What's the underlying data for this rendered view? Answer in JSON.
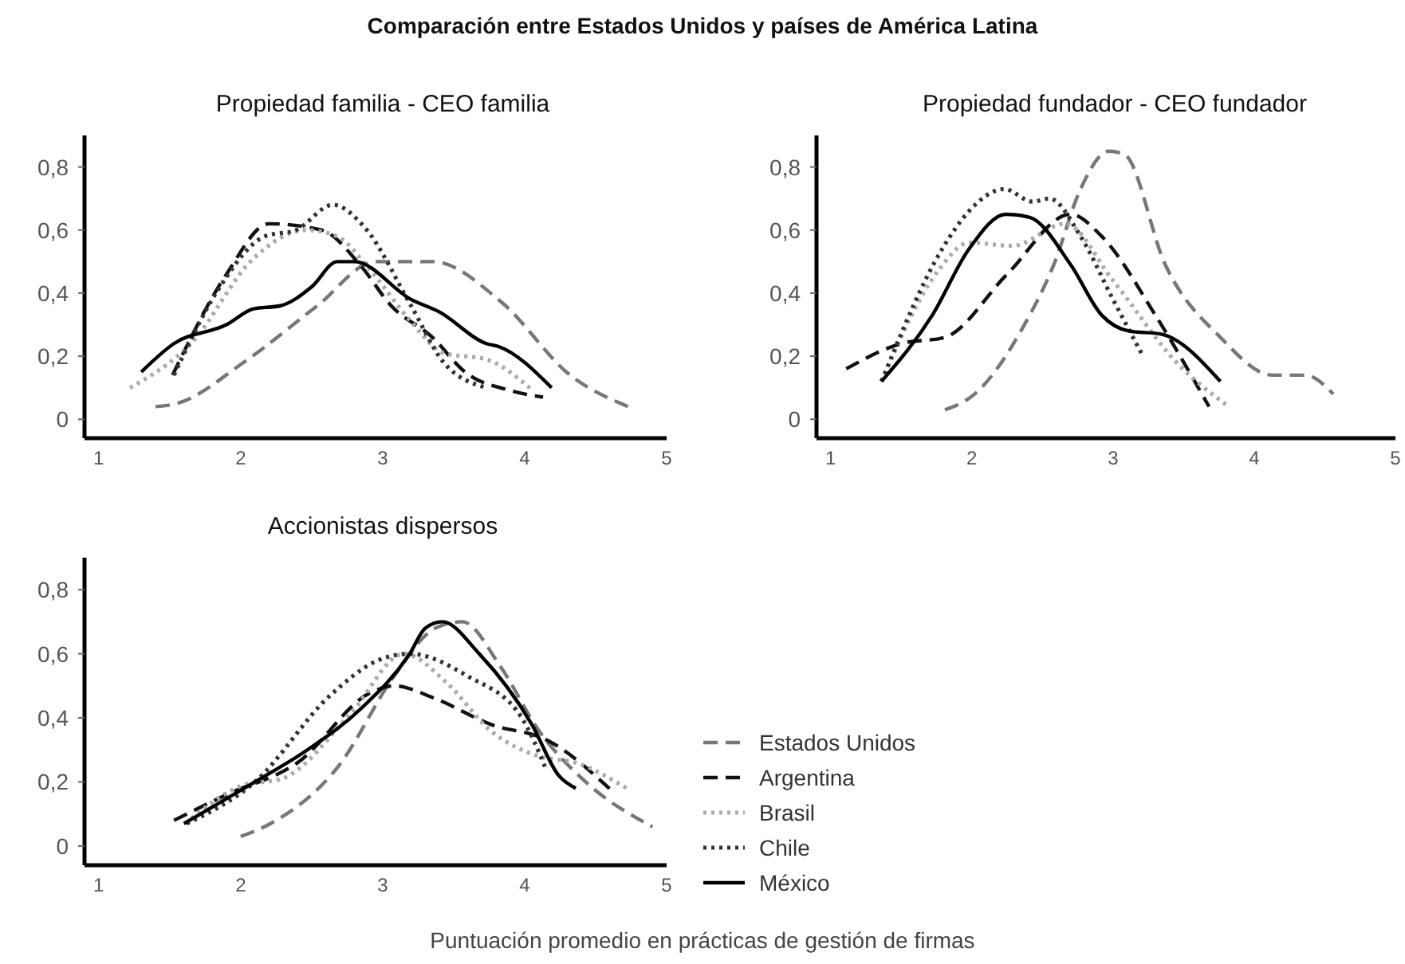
{
  "chart_data": [
    {
      "type": "line",
      "title": "Propiedad familia - CEO familia",
      "annotations": [
        "Comparación entre Estados Unidos y países de América Latina"
      ],
      "xlim": [
        0.9,
        5
      ],
      "xticks": [
        1,
        2,
        3,
        4,
        5
      ],
      "ylim": [
        -0.06,
        0.9
      ],
      "yticks": [
        {
          "value": 0,
          "label": "0"
        },
        {
          "value": 0.2,
          "label": "0,2"
        },
        {
          "value": 0.4,
          "label": "0,4"
        },
        {
          "value": 0.6,
          "label": "0,6"
        },
        {
          "value": 0.8,
          "label": "0,8"
        }
      ],
      "grid": false,
      "legend": false,
      "marker": "none",
      "series": [
        {
          "color": "#777777",
          "line_style": "dashed",
          "x": [
            1.4,
            1.55,
            2.02,
            2.54,
            2.95,
            3.35,
            3.84,
            4.32,
            4.73
          ],
          "values": [
            0.04,
            0.05,
            0.18,
            0.36,
            0.5,
            0.5,
            0.37,
            0.14,
            0.04
          ]
        },
        {
          "color": "#111111",
          "line_style": "dashed",
          "x": [
            1.52,
            1.9,
            2.2,
            2.57,
            2.84,
            3.06,
            3.35,
            3.58,
            3.91,
            4.13
          ],
          "values": [
            0.14,
            0.46,
            0.62,
            0.6,
            0.49,
            0.36,
            0.26,
            0.15,
            0.09,
            0.07
          ]
        },
        {
          "color": "#aaaaaa",
          "line_style": "dotted",
          "x": [
            1.22,
            1.65,
            2.09,
            2.46,
            2.68,
            2.9,
            3.2,
            3.43,
            3.73,
            4.06
          ],
          "values": [
            0.1,
            0.24,
            0.51,
            0.6,
            0.58,
            0.48,
            0.31,
            0.21,
            0.19,
            0.09
          ]
        },
        {
          "color": "#333333",
          "line_style": "dotted",
          "x": [
            1.53,
            1.84,
            2.17,
            2.39,
            2.65,
            2.87,
            3.2,
            3.43,
            3.73
          ],
          "values": [
            0.14,
            0.41,
            0.58,
            0.6,
            0.68,
            0.61,
            0.36,
            0.18,
            0.1
          ]
        },
        {
          "color": "#000000",
          "line_style": "solid",
          "x": [
            1.3,
            1.53,
            1.9,
            2.09,
            2.28,
            2.5,
            2.68,
            2.8,
            3.2,
            3.4,
            3.73,
            3.82,
            4.19
          ],
          "values": [
            0.15,
            0.24,
            0.3,
            0.35,
            0.36,
            0.42,
            0.5,
            0.5,
            0.38,
            0.34,
            0.24,
            0.23,
            0.1
          ]
        }
      ]
    },
    {
      "type": "line",
      "title": "Propiedad fundador - CEO fundador",
      "xlim": [
        0.9,
        5
      ],
      "xticks": [
        1,
        2,
        3,
        4,
        5
      ],
      "ylim": [
        -0.06,
        0.9
      ],
      "yticks": [
        {
          "value": 0,
          "label": "0"
        },
        {
          "value": 0.2,
          "label": "0,2"
        },
        {
          "value": 0.4,
          "label": "0,4"
        },
        {
          "value": 0.6,
          "label": "0,6"
        },
        {
          "value": 0.8,
          "label": "0,8"
        }
      ],
      "grid": false,
      "legend": false,
      "marker": "none",
      "series": [
        {
          "color": "#777777",
          "line_style": "dashed",
          "x": [
            1.81,
            2.02,
            2.36,
            2.58,
            2.77,
            2.97,
            3.08,
            3.37,
            3.76,
            4.13,
            4.36,
            4.56
          ],
          "values": [
            0.03,
            0.08,
            0.29,
            0.49,
            0.73,
            0.85,
            0.84,
            0.49,
            0.26,
            0.14,
            0.14,
            0.08
          ]
        },
        {
          "color": "#111111",
          "line_style": "dashed",
          "x": [
            1.11,
            1.5,
            1.81,
            2.25,
            2.7,
            2.92,
            3.3,
            3.68
          ],
          "values": [
            0.16,
            0.24,
            0.26,
            0.46,
            0.65,
            0.58,
            0.33,
            0.04
          ]
        },
        {
          "color": "#aaaaaa",
          "line_style": "dotted",
          "x": [
            1.36,
            1.76,
            1.98,
            2.29,
            2.66,
            3.0,
            3.45,
            3.82
          ],
          "values": [
            0.12,
            0.47,
            0.56,
            0.55,
            0.62,
            0.44,
            0.18,
            0.04
          ]
        },
        {
          "color": "#333333",
          "line_style": "dotted",
          "x": [
            1.36,
            1.79,
            1.98,
            2.23,
            2.43,
            2.55,
            2.77,
            3.0,
            3.2
          ],
          "values": [
            0.12,
            0.54,
            0.66,
            0.73,
            0.69,
            0.7,
            0.58,
            0.38,
            0.21
          ]
        },
        {
          "color": "#000000",
          "line_style": "solid",
          "x": [
            1.36,
            1.72,
            1.98,
            2.24,
            2.41,
            2.7,
            2.92,
            3.11,
            3.34,
            3.76
          ],
          "values": [
            0.12,
            0.33,
            0.54,
            0.65,
            0.64,
            0.49,
            0.33,
            0.28,
            0.27,
            0.12
          ]
        }
      ]
    },
    {
      "type": "line",
      "title": "Accionistas dispersos",
      "xlabel": "Puntuación promedio en prácticas de gestión de firmas",
      "xlim": [
        0.9,
        5
      ],
      "xticks": [
        1,
        2,
        3,
        4,
        5
      ],
      "ylim": [
        -0.06,
        0.9
      ],
      "yticks": [
        {
          "value": 0,
          "label": "0"
        },
        {
          "value": 0.2,
          "label": "0,2"
        },
        {
          "value": 0.4,
          "label": "0,4"
        },
        {
          "value": 0.6,
          "label": "0,6"
        },
        {
          "value": 0.8,
          "label": "0,8"
        }
      ],
      "grid": false,
      "legend": "right",
      "marker": "none",
      "series": [
        {
          "name": "Estados Unidos",
          "color": "#777777",
          "line_style": "dashed",
          "x": [
            2.0,
            2.21,
            2.69,
            3.08,
            3.37,
            3.56,
            3.83,
            4.1,
            4.43,
            4.9
          ],
          "values": [
            0.03,
            0.07,
            0.25,
            0.53,
            0.68,
            0.7,
            0.56,
            0.36,
            0.2,
            0.06
          ]
        },
        {
          "name": "Argentina",
          "color": "#111111",
          "line_style": "dashed",
          "x": [
            1.53,
            1.9,
            2.4,
            2.92,
            3.08,
            3.37,
            3.76,
            4.16,
            4.62
          ],
          "values": [
            0.08,
            0.16,
            0.26,
            0.48,
            0.5,
            0.46,
            0.38,
            0.33,
            0.17
          ]
        },
        {
          "name": "Brasil",
          "color": "#aaaaaa",
          "line_style": "dotted",
          "x": [
            1.61,
            2.02,
            2.29,
            2.77,
            3.15,
            3.45,
            3.76,
            4.1,
            4.36,
            4.72
          ],
          "values": [
            0.07,
            0.19,
            0.21,
            0.41,
            0.6,
            0.51,
            0.36,
            0.28,
            0.26,
            0.18
          ]
        },
        {
          "name": "Chile",
          "color": "#333333",
          "line_style": "dotted",
          "x": [
            1.62,
            2.1,
            2.63,
            2.97,
            3.19,
            3.6,
            3.98,
            4.15
          ],
          "values": [
            0.07,
            0.2,
            0.47,
            0.58,
            0.6,
            0.53,
            0.4,
            0.24
          ]
        },
        {
          "name": "México",
          "color": "#000000",
          "line_style": "solid",
          "x": [
            1.6,
            2.1,
            2.47,
            2.85,
            3.19,
            3.3,
            3.42,
            3.68,
            4.05,
            4.24,
            4.36
          ],
          "values": [
            0.07,
            0.2,
            0.3,
            0.43,
            0.6,
            0.68,
            0.7,
            0.6,
            0.38,
            0.22,
            0.18
          ]
        }
      ]
    }
  ]
}
